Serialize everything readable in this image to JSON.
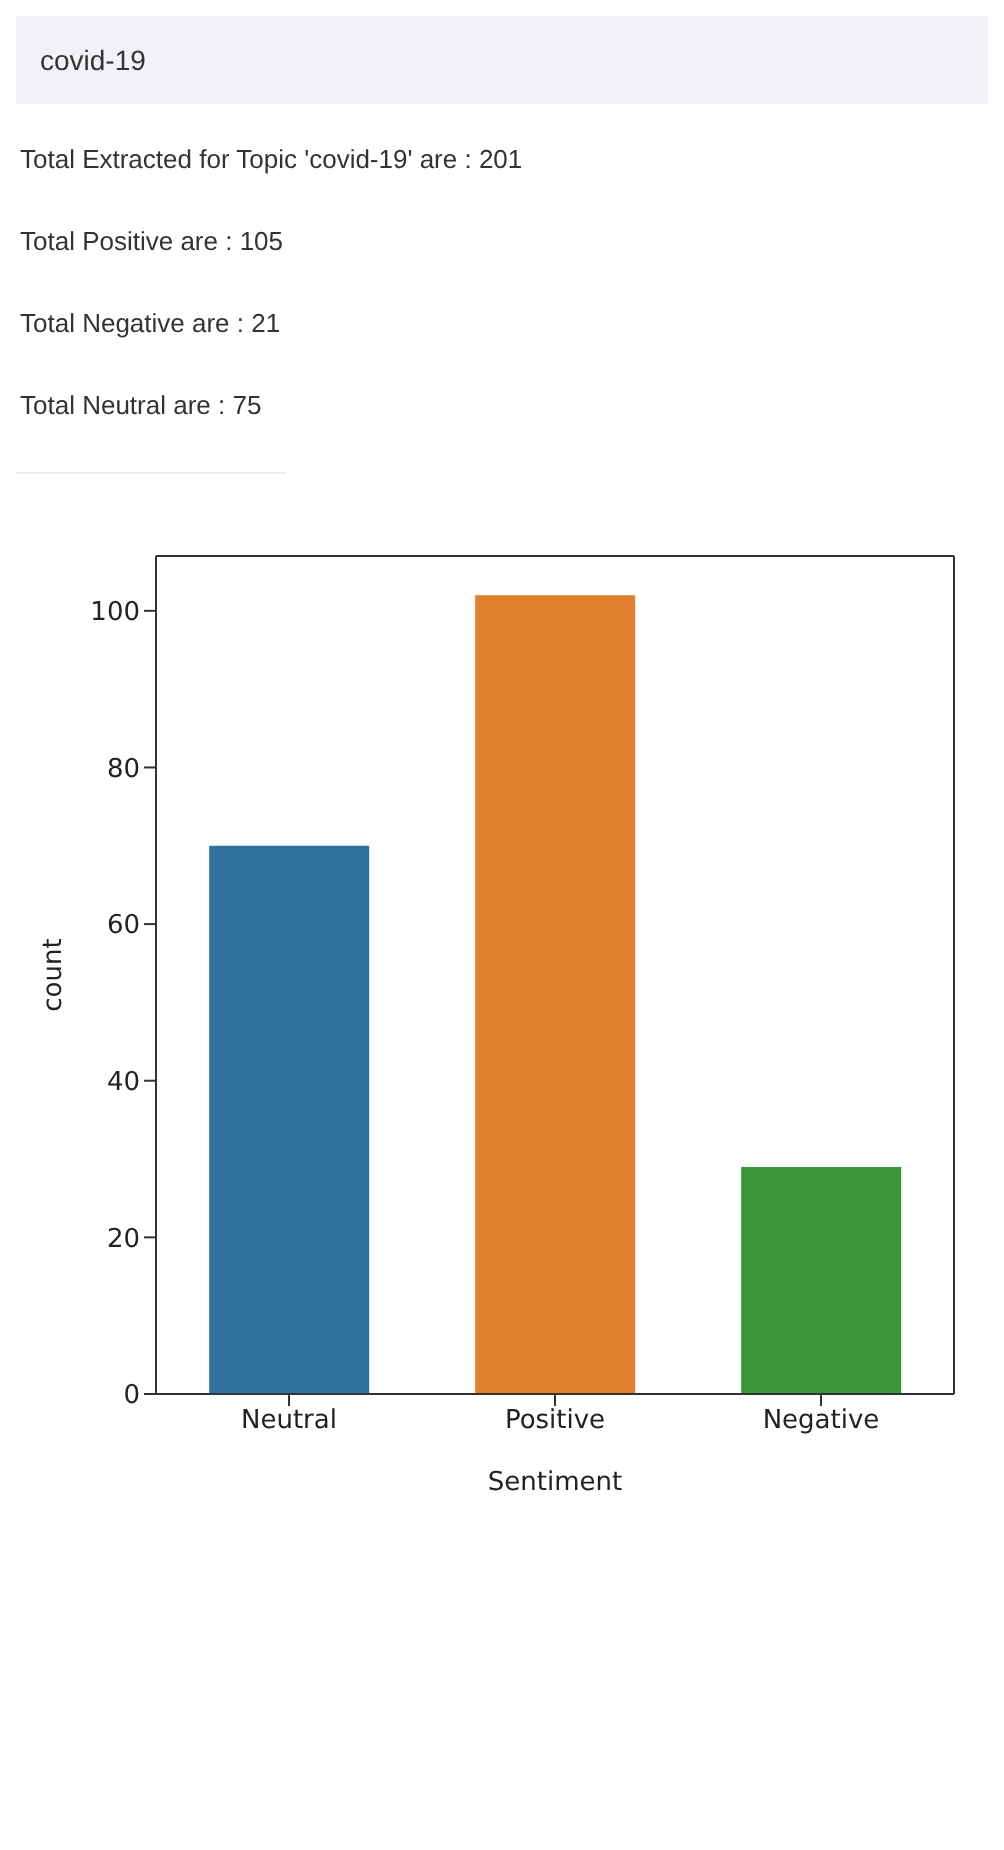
{
  "chart_data": {
    "type": "bar",
    "annotations": [
      "covid-19",
      "Total Extracted for Topic 'covid-19' are : 201",
      "Total Positive are : 105",
      "Total Negative are : 21",
      "Total Neutral are : 75"
    ],
    "categories": [
      "Neutral",
      "Positive",
      "Negative"
    ],
    "values": [
      70,
      102,
      29
    ],
    "colors": [
      "#2f71a0",
      "#e0802d",
      "#3b963a"
    ],
    "xlabel": "Sentiment",
    "ylabel": "count",
    "ylim": [
      0,
      107
    ],
    "yticks": [
      0,
      20,
      40,
      60,
      80,
      100
    ]
  }
}
